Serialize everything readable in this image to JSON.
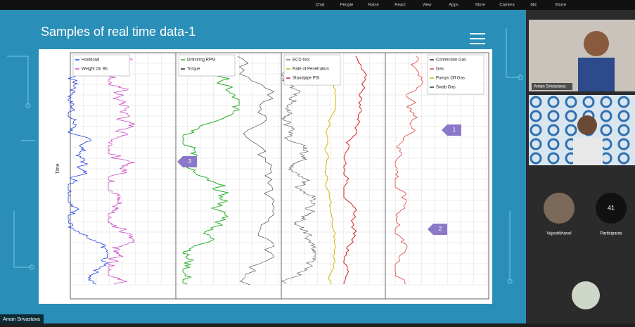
{
  "toolbar": {
    "items": [
      "Chat",
      "People",
      "Raise",
      "React",
      "View",
      "Apps",
      "More",
      "Camera",
      "Mic",
      "Share"
    ]
  },
  "slide": {
    "title": "Samples of real time data-1",
    "axis_label": "Time",
    "tracks": [
      {
        "legend": [
          "Hookload",
          "Weight On Bit"
        ]
      },
      {
        "legend": [
          "Drillstring RPM",
          "Torque"
        ]
      },
      {
        "legend": [
          "ECD tool",
          "Rate of Penetration",
          "Standpipe PSI"
        ]
      },
      {
        "legend": [
          "Connection Gas",
          "Gas",
          "Pumps Off Gas",
          "Swab Gas"
        ]
      }
    ],
    "callouts": [
      "1",
      "2",
      "3"
    ]
  },
  "participants": {
    "presenter": "Aman Srivastava",
    "attendee": "Vajeshkhavel",
    "count": "41",
    "count_label": "Participants"
  },
  "presenter_caption": "Aman Srivastava"
}
